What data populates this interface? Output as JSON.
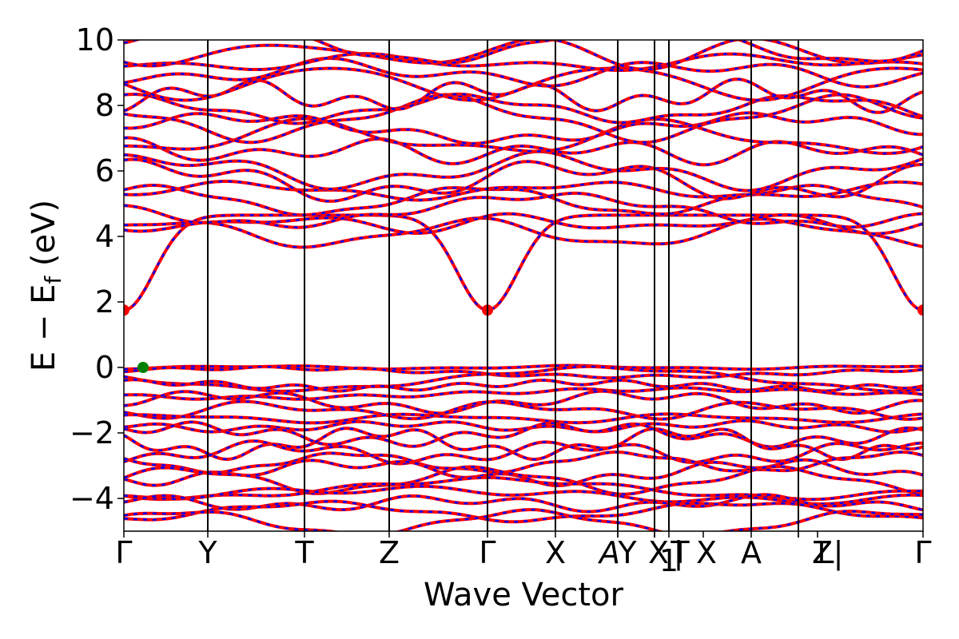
{
  "chart_data": {
    "type": "line",
    "title": "",
    "xlabel": "Wave Vector",
    "ylabel": "E − E",
    "ylabel_sub": "f",
    "ylabel_unit": " (eV)",
    "ylim": [
      -5,
      10
    ],
    "yticks": [
      -4,
      -2,
      0,
      2,
      4,
      6,
      8,
      10
    ],
    "ytick_labels": [
      "−4",
      "−2",
      "0",
      "2",
      "4",
      "6",
      "8",
      "10"
    ],
    "xlim": [
      0,
      100
    ],
    "kpoints": [
      {
        "label": "Γ",
        "pos": 0
      },
      {
        "label": "Y",
        "pos": 10.5
      },
      {
        "label": "T",
        "pos": 22.6
      },
      {
        "label": "Z",
        "pos": 33.2
      },
      {
        "label": "Γ",
        "pos": 45.5
      },
      {
        "label": "X",
        "pos": 54.0
      },
      {
        "label": "A",
        "pos": 61.8
      },
      {
        "label": "Y",
        "pos": 61.8
      },
      {
        "label": "X",
        "pos": 66.4
      },
      {
        "label": "1",
        "pos": 66.4
      },
      {
        "label": "|",
        "pos": 66.4
      },
      {
        "label": "T",
        "pos": 68.2
      },
      {
        "label": "X",
        "pos": 72.5
      },
      {
        "label": "A",
        "pos": 78.5
      },
      {
        "label": "Z",
        "pos": 84.4
      },
      {
        "label": "|",
        "pos": 84.4
      },
      {
        "label": "L",
        "pos": 86.8
      },
      {
        "label": "Γ",
        "pos": 100
      }
    ],
    "vertical_lines": [
      10.5,
      22.6,
      33.2,
      45.5,
      54.0,
      61.8,
      66.4,
      68.2,
      78.5,
      84.4
    ],
    "series": [
      {
        "color": "#ff0000",
        "style": "solid"
      },
      {
        "color": "#0000ff",
        "style": "dashed"
      }
    ],
    "markers": [
      {
        "label": "CBM",
        "x": 0,
        "y": 1.75,
        "color": "#ff0000"
      },
      {
        "label": "CBM",
        "x": 45.5,
        "y": 1.75,
        "color": "#ff0000"
      },
      {
        "label": "CBM",
        "x": 100,
        "y": 1.75,
        "color": "#ff0000"
      },
      {
        "label": "VBM",
        "x": 2.4,
        "y": 0.0,
        "color": "#008000"
      }
    ]
  }
}
